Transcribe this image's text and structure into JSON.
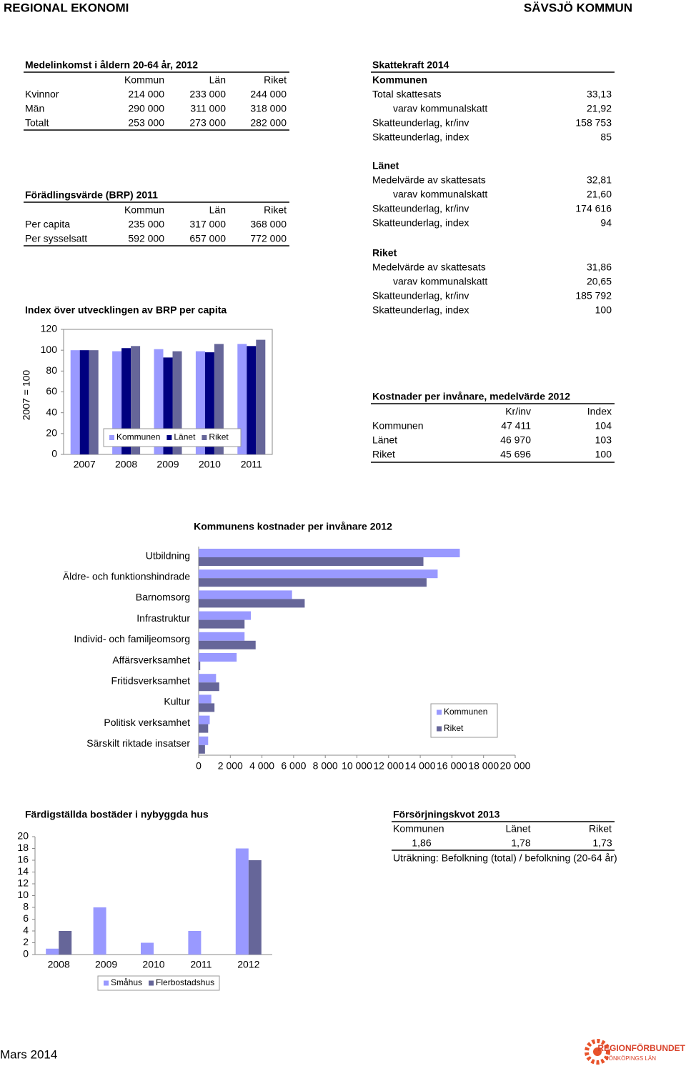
{
  "header": {
    "left": "REGIONAL EKONOMI",
    "right": "SÄVSJÖ KOMMUN"
  },
  "income": {
    "title": "Medelinkomst i åldern 20-64 år, 2012",
    "columns": [
      "Kommun",
      "Län",
      "Riket"
    ],
    "rows": [
      {
        "label": "Kvinnor",
        "values": [
          "214 000",
          "233 000",
          "244 000"
        ]
      },
      {
        "label": "Män",
        "values": [
          "290 000",
          "311 000",
          "318 000"
        ]
      },
      {
        "label": "Totalt",
        "values": [
          "253 000",
          "273 000",
          "282 000"
        ]
      }
    ]
  },
  "brp": {
    "title": "Förädlingsvärde (BRP) 2011",
    "columns": [
      "Kommun",
      "Län",
      "Riket"
    ],
    "rows": [
      {
        "label": "Per capita",
        "values": [
          "235 000",
          "317 000",
          "368 000"
        ]
      },
      {
        "label": "Per sysselsatt",
        "values": [
          "592 000",
          "657 000",
          "772 000"
        ]
      }
    ]
  },
  "skattekraft": {
    "title": "Skattekraft 2014",
    "sections": [
      {
        "name": "Kommunen",
        "rows": [
          {
            "label": "Total skattesats",
            "value": "33,13"
          },
          {
            "label": "varav kommunalskatt",
            "value": "21,92"
          },
          {
            "label": "Skatteunderlag, kr/inv",
            "value": "158 753"
          },
          {
            "label": "Skatteunderlag, index",
            "value": "85"
          }
        ]
      },
      {
        "name": "Länet",
        "rows": [
          {
            "label": "Medelvärde av skattesats",
            "value": "32,81"
          },
          {
            "label": "varav kommunalskatt",
            "value": "21,60"
          },
          {
            "label": "Skatteunderlag, kr/inv",
            "value": "174 616"
          },
          {
            "label": "Skatteunderlag, index",
            "value": "94"
          }
        ]
      },
      {
        "name": "Riket",
        "rows": [
          {
            "label": "Medelvärde av skattesats",
            "value": "31,86"
          },
          {
            "label": "varav kommunalskatt",
            "value": "20,65"
          },
          {
            "label": "Skatteunderlag, kr/inv",
            "value": "185 792"
          },
          {
            "label": "Skatteunderlag, index",
            "value": "100"
          }
        ]
      }
    ]
  },
  "kostnader": {
    "title": "Kostnader per invånare, medelvärde 2012",
    "columns": [
      "Kr/inv",
      "Index"
    ],
    "rows": [
      {
        "label": "Kommunen",
        "values": [
          "47 411",
          "104"
        ]
      },
      {
        "label": "Länet",
        "values": [
          "46 970",
          "103"
        ]
      },
      {
        "label": "Riket",
        "values": [
          "45 696",
          "100"
        ]
      }
    ]
  },
  "forsorjning": {
    "title": "Försörjningskvot 2013",
    "columns": [
      "Kommunen",
      "Länet",
      "Riket"
    ],
    "values": [
      "1,86",
      "1,78",
      "1,73"
    ],
    "note": "Uträkning: Befolkning (total) / befolkning (20-64 år)"
  },
  "footer": {
    "date": "Mars 2014",
    "logo": [
      "REGIONFÖRBUNDET",
      "JÖNKÖPINGS LÄN"
    ]
  },
  "chart_data": [
    {
      "type": "bar",
      "title": "Index över utvecklingen av BRP per capita",
      "y_label": "2007 = 100",
      "categories": [
        "2007",
        "2008",
        "2009",
        "2010",
        "2011"
      ],
      "series": [
        {
          "name": "Kommunen",
          "color": "#9999ff",
          "values": [
            100,
            99,
            101,
            99,
            106
          ]
        },
        {
          "name": "Länet",
          "color": "#000080",
          "values": [
            100,
            102,
            93,
            98,
            104
          ]
        },
        {
          "name": "Riket",
          "color": "#666699",
          "values": [
            100,
            104,
            99,
            106,
            110
          ]
        }
      ],
      "ylim": [
        0,
        120
      ],
      "yticks": [
        0,
        20,
        40,
        60,
        80,
        100,
        120
      ],
      "grid": false,
      "legend": "bottom"
    },
    {
      "type": "barh",
      "title": "Kommunens kostnader per invånare 2012",
      "categories": [
        "Utbildning",
        "Äldre- och funktionshindrade",
        "Barnomsorg",
        "Infrastruktur",
        "Individ- och familjeomsorg",
        "Affärsverksamhet",
        "Fritidsverksamhet",
        "Kultur",
        "Politisk verksamhet",
        "Särskilt riktade insatser"
      ],
      "series": [
        {
          "name": "Kommunen",
          "color": "#9999ff",
          "values": [
            16500,
            15100,
            5900,
            3300,
            2900,
            2400,
            1100,
            800,
            700,
            600
          ]
        },
        {
          "name": "Riket",
          "color": "#666699",
          "values": [
            14200,
            14400,
            6700,
            2900,
            3600,
            100,
            1300,
            1000,
            600,
            400
          ]
        }
      ],
      "xlim": [
        0,
        20000
      ],
      "xticks": [
        0,
        {
          "value": 2000,
          "label": "2 000"
        },
        {
          "value": 4000,
          "label": "4 000"
        },
        {
          "value": 6000,
          "label": "6 000"
        },
        {
          "value": 8000,
          "label": "8 000"
        },
        {
          "value": 10000,
          "label": "10 000"
        },
        {
          "value": 12000,
          "label": "12 000"
        },
        {
          "value": 14000,
          "label": "14 000"
        },
        {
          "value": 16000,
          "label": "16 000"
        },
        {
          "value": 18000,
          "label": "18 000"
        },
        {
          "value": 20000,
          "label": "20 000"
        }
      ],
      "grid": false,
      "legend": "lower right"
    },
    {
      "type": "bar",
      "title": "Färdigställda bostäder i nybyggda hus",
      "categories": [
        "2008",
        "2009",
        "2010",
        "2011",
        "2012"
      ],
      "series": [
        {
          "name": "Småhus",
          "color": "#9999ff",
          "values": [
            1,
            8,
            2,
            4,
            18
          ]
        },
        {
          "name": "Flerbostadshus",
          "color": "#666699",
          "values": [
            4,
            0,
            0,
            0,
            16
          ]
        }
      ],
      "ylim": [
        0,
        20
      ],
      "yticks": [
        0,
        2,
        4,
        6,
        8,
        10,
        12,
        14,
        16,
        18,
        20
      ],
      "grid": false,
      "legend": "below"
    }
  ]
}
